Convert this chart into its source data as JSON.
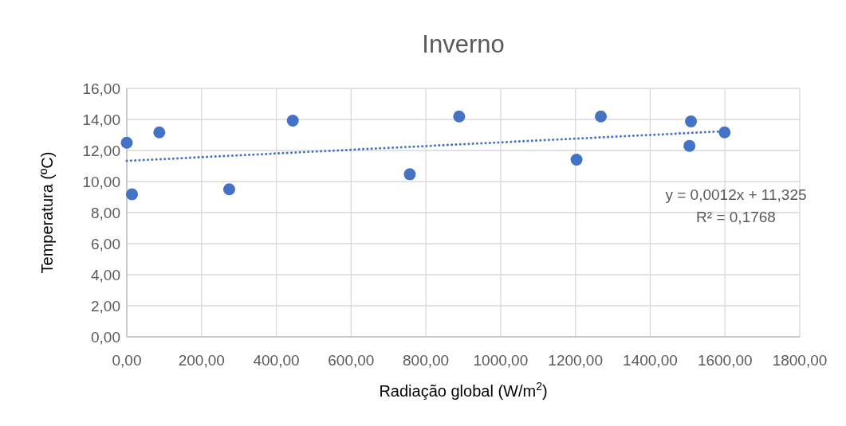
{
  "chart_data": {
    "type": "scatter",
    "title": "Inverno",
    "xlabel": "Radiação global (W/m$^{2}$)",
    "ylabel": "Temperatura (ºC)",
    "annotations": [
      "y = 0,0012x + 11,325",
      "R² = 0,1768"
    ],
    "series": [
      {
        "color": "#4472c4",
        "x": [
          0,
          14,
          87,
          274,
          444,
          757,
          889,
          1203,
          1268,
          1509,
          1505,
          1599
        ],
        "values": [
          12.5,
          9.18,
          13.17,
          9.5,
          13.92,
          10.47,
          14.19,
          11.41,
          14.19,
          13.87,
          12.3,
          13.17
        ]
      },
      {
        "type": "line",
        "color": "#4472c4",
        "line_style": "dotted",
        "marker": "none",
        "x": [
          0,
          1599
        ],
        "values": [
          11.33,
          13.24
        ]
      }
    ],
    "marker": "circle",
    "grid": true,
    "xlim": [
      0,
      1800
    ],
    "xticks": [
      {
        "value": 0,
        "label": "0,00"
      },
      {
        "value": 200,
        "label": "200,00"
      },
      {
        "value": 400,
        "label": "400,00"
      },
      {
        "value": 600,
        "label": "600,00"
      },
      {
        "value": 800,
        "label": "800,00"
      },
      {
        "value": 1000,
        "label": "1000,00"
      },
      {
        "value": 1200,
        "label": "1200,00"
      },
      {
        "value": 1400,
        "label": "1400,00"
      },
      {
        "value": 1600,
        "label": "1600,00"
      },
      {
        "value": 1800,
        "label": "1800,00"
      }
    ],
    "ylim": [
      0,
      16
    ],
    "yticks": [
      {
        "value": 0,
        "label": "0,00"
      },
      {
        "value": 2,
        "label": "2,00"
      },
      {
        "value": 4,
        "label": "4,00"
      },
      {
        "value": 6,
        "label": "6,00"
      },
      {
        "value": 8,
        "label": "8,00"
      },
      {
        "value": 10,
        "label": "10,00"
      },
      {
        "value": 12,
        "label": "12,00"
      },
      {
        "value": 14,
        "label": "14,00"
      },
      {
        "value": 16,
        "label": "16,00"
      }
    ]
  }
}
